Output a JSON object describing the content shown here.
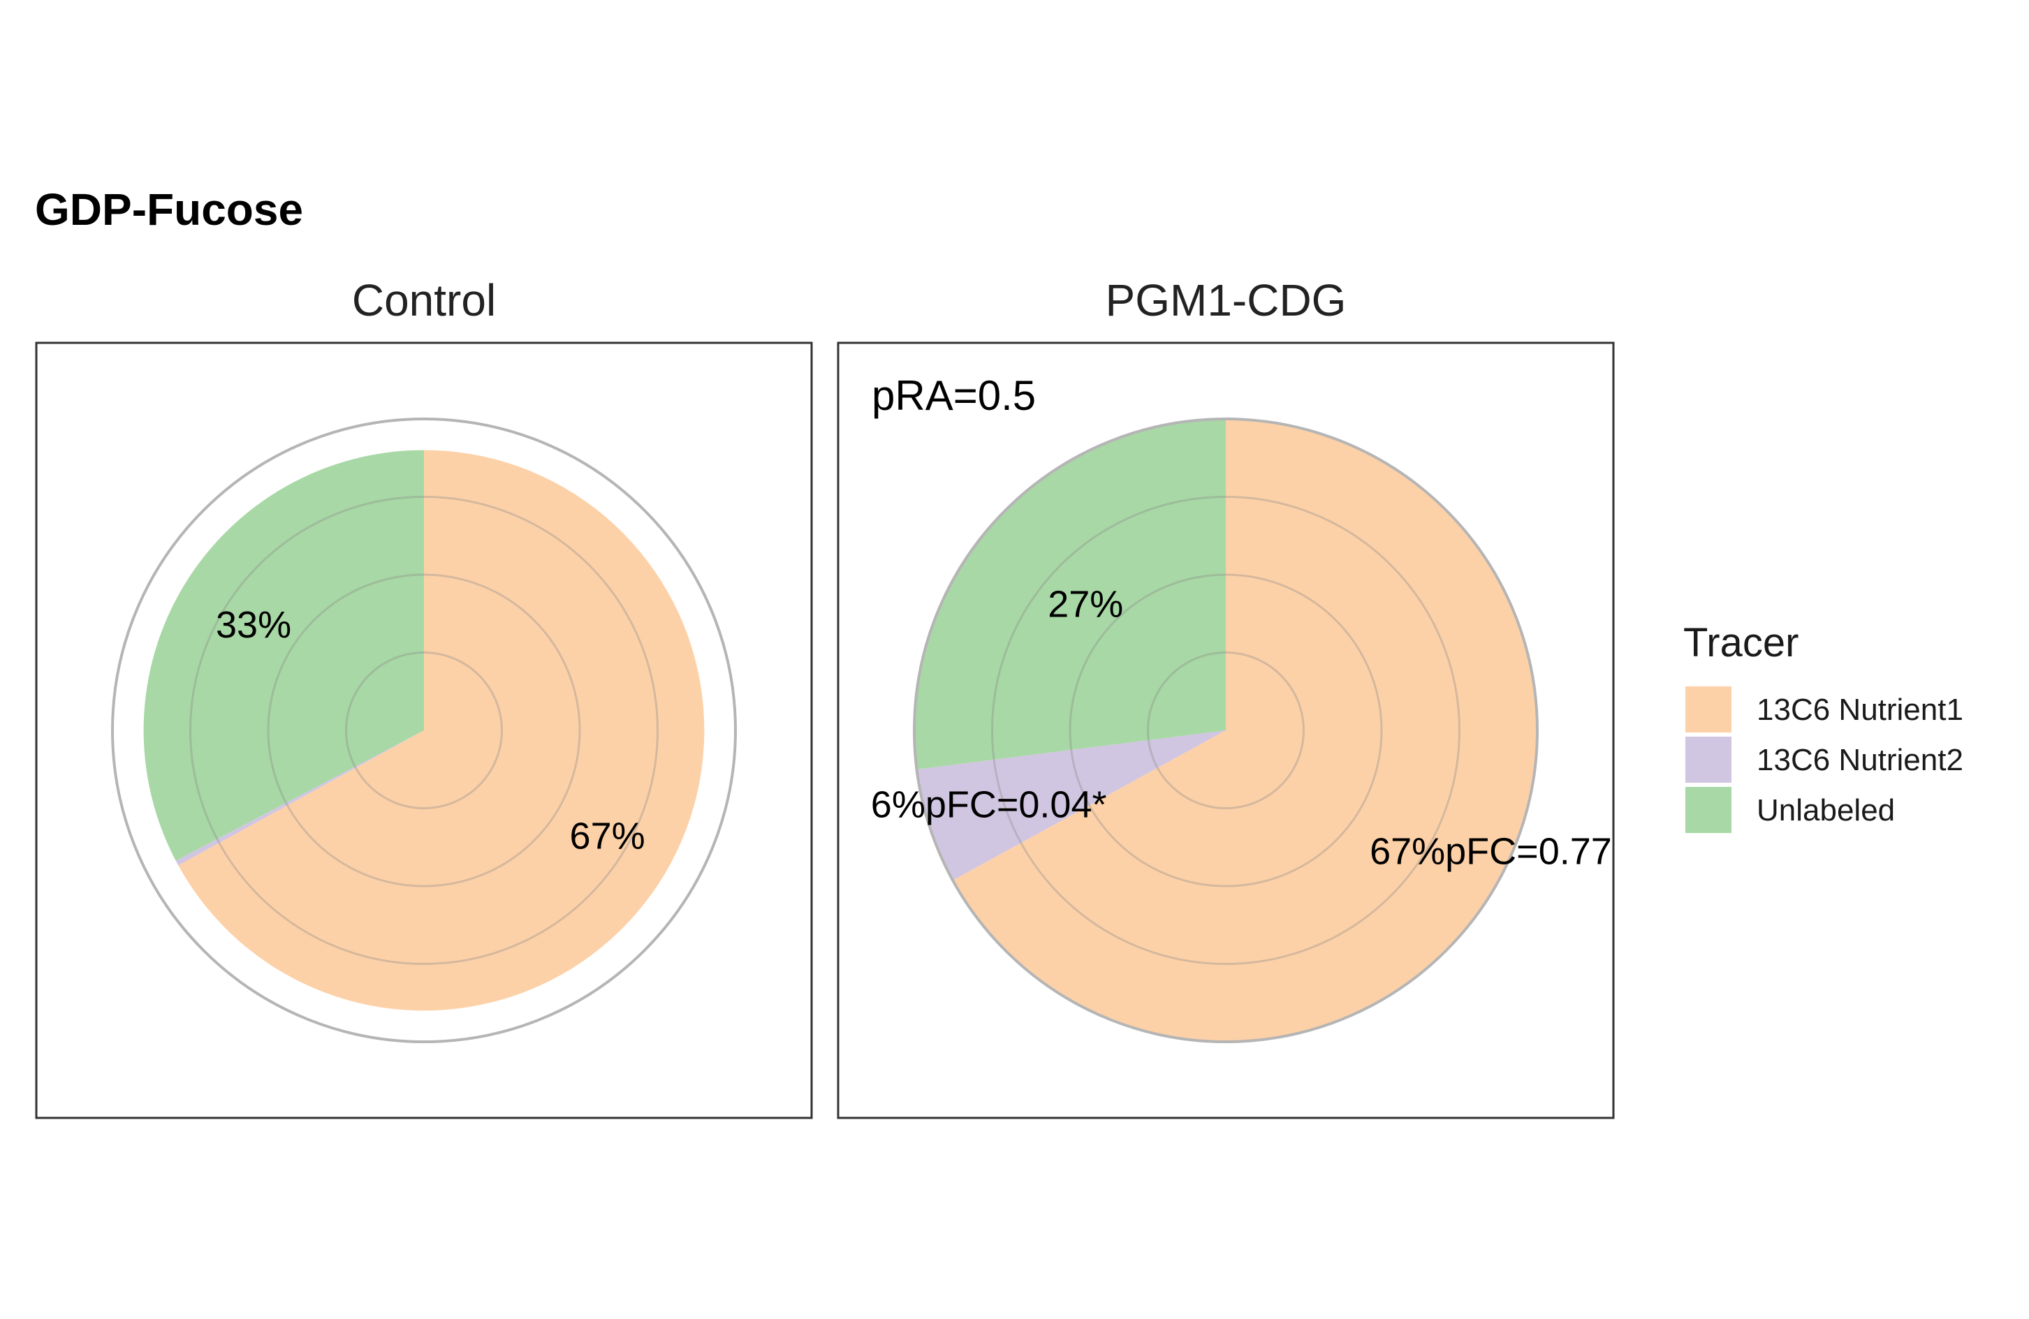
{
  "figure": {
    "title": "GDP-Fucose"
  },
  "legend": {
    "title": "Tracer",
    "position": "right",
    "items": [
      {
        "label": "13C6 Nutrient1",
        "color": "#FDD1A8"
      },
      {
        "label": "13C6 Nutrient2",
        "color": "#D1C6E1"
      },
      {
        "label": "Unlabeled",
        "color": "#A8D8A5"
      }
    ]
  },
  "chart_data": [
    {
      "type": "pie",
      "panel": "Control",
      "annotation": "",
      "relative_size": 0.9,
      "slices": [
        {
          "series": "13C6 Nutrient1",
          "value": 0.67,
          "label": "67%"
        },
        {
          "series": "13C6 Nutrient2",
          "value": 0.003,
          "label": ""
        },
        {
          "series": "Unlabeled",
          "value": 0.327,
          "label": "33%"
        }
      ]
    },
    {
      "type": "pie",
      "panel": "PGM1-CDG",
      "annotation": "pRA=0.5",
      "relative_size": 1.0,
      "slices": [
        {
          "series": "13C6 Nutrient1",
          "value": 0.67,
          "label": "67%pFC=0.77"
        },
        {
          "series": "13C6 Nutrient2",
          "value": 0.06,
          "label": "6%pFC=0.04*"
        },
        {
          "series": "Unlabeled",
          "value": 0.27,
          "label": "27%"
        }
      ]
    }
  ]
}
